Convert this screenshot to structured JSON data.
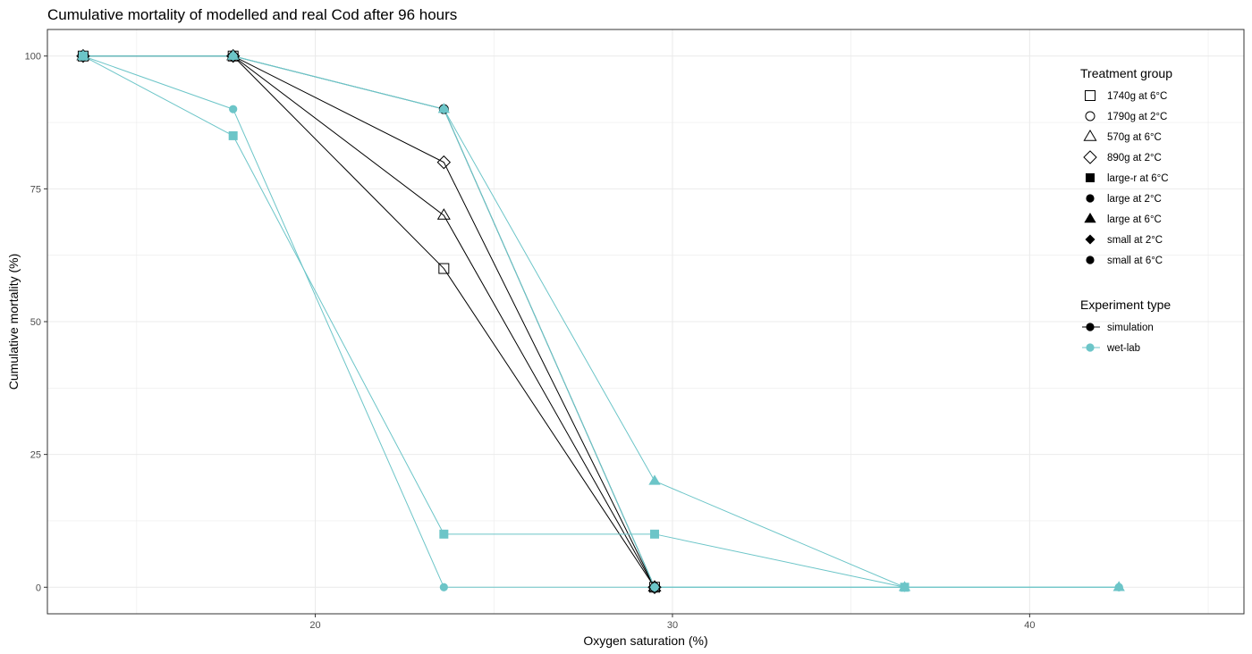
{
  "chart_data": {
    "type": "line",
    "title": "Cumulative mortality of modelled and real Cod after 96 hours",
    "xlabel": "Oxygen saturation (%)",
    "ylabel": "Cumulative mortality (%)",
    "xlim": [
      12.5,
      46
    ],
    "ylim": [
      -5,
      105
    ],
    "x_ticks": [
      20,
      30,
      40
    ],
    "y_ticks": [
      0,
      25,
      50,
      75,
      100
    ],
    "grid": true,
    "legend_position": "top-right",
    "legends": [
      {
        "title": "Treatment group",
        "entries": [
          {
            "label": "1740g at 6°C",
            "shape": "open-square"
          },
          {
            "label": "1790g at 2°C",
            "shape": "open-circle"
          },
          {
            "label": "570g at 6°C",
            "shape": "open-triangle"
          },
          {
            "label": "890g at 2°C",
            "shape": "open-diamond"
          },
          {
            "label": "large-r at 6°C",
            "shape": "filled-square"
          },
          {
            "label": "large at 2°C",
            "shape": "filled-circle"
          },
          {
            "label": "large at 6°C",
            "shape": "filled-triangle"
          },
          {
            "label": "small at 2°C",
            "shape": "filled-diamond"
          },
          {
            "label": "small at 6°C",
            "shape": "filled-circle"
          }
        ]
      },
      {
        "title": "Experiment type",
        "entries": [
          {
            "label": "simulation",
            "color": "#000000"
          },
          {
            "label": "wet-lab",
            "color": "#6cc5c8"
          }
        ]
      }
    ],
    "series": [
      {
        "name": "1740g at 6°C",
        "experiment": "simulation",
        "shape": "open-square",
        "points": [
          [
            13.5,
            100
          ],
          [
            17.7,
            100
          ],
          [
            23.6,
            60
          ],
          [
            29.5,
            0
          ]
        ]
      },
      {
        "name": "1790g at 2°C",
        "experiment": "simulation",
        "shape": "open-circle",
        "points": [
          [
            13.5,
            100
          ],
          [
            17.7,
            100
          ],
          [
            23.6,
            90
          ],
          [
            29.5,
            0
          ]
        ]
      },
      {
        "name": "570g at 6°C",
        "experiment": "simulation",
        "shape": "open-triangle",
        "points": [
          [
            13.5,
            100
          ],
          [
            17.7,
            100
          ],
          [
            23.6,
            70
          ],
          [
            29.5,
            0
          ]
        ]
      },
      {
        "name": "890g at 2°C",
        "experiment": "simulation",
        "shape": "open-diamond",
        "points": [
          [
            13.5,
            100
          ],
          [
            17.7,
            100
          ],
          [
            23.6,
            80
          ],
          [
            29.5,
            0
          ]
        ]
      },
      {
        "name": "large-r at 6°C",
        "experiment": "wet-lab",
        "shape": "filled-square",
        "points": [
          [
            13.5,
            100
          ],
          [
            17.7,
            85
          ],
          [
            23.6,
            10
          ],
          [
            29.5,
            10
          ],
          [
            36.5,
            0
          ]
        ]
      },
      {
        "name": "large at 2°C",
        "experiment": "wet-lab",
        "shape": "filled-circle",
        "points": [
          [
            13.5,
            100
          ],
          [
            17.7,
            100
          ],
          [
            23.6,
            90
          ],
          [
            29.5,
            0
          ],
          [
            36.5,
            0
          ],
          [
            42.5,
            0
          ]
        ]
      },
      {
        "name": "large at 6°C",
        "experiment": "wet-lab",
        "shape": "filled-triangle",
        "points": [
          [
            13.5,
            100
          ],
          [
            17.7,
            100
          ],
          [
            23.6,
            90
          ],
          [
            29.5,
            20
          ],
          [
            36.5,
            0
          ],
          [
            42.5,
            0
          ]
        ]
      },
      {
        "name": "small at 2°C",
        "experiment": "wet-lab",
        "shape": "filled-diamond",
        "points": [
          [
            13.5,
            100
          ],
          [
            17.7,
            100
          ],
          [
            23.6,
            90
          ],
          [
            29.5,
            0
          ],
          [
            36.5,
            0
          ]
        ]
      },
      {
        "name": "small at 6°C",
        "experiment": "wet-lab",
        "shape": "filled-circle",
        "points": [
          [
            13.5,
            100
          ],
          [
            17.7,
            90
          ],
          [
            23.6,
            0
          ],
          [
            29.5,
            0
          ],
          [
            36.5,
            0
          ],
          [
            42.5,
            0
          ]
        ]
      }
    ],
    "colors": {
      "simulation": "#000000",
      "wet-lab": "#6cc5c8",
      "grid": "#ebebeb",
      "panel_border": "#333333"
    }
  }
}
